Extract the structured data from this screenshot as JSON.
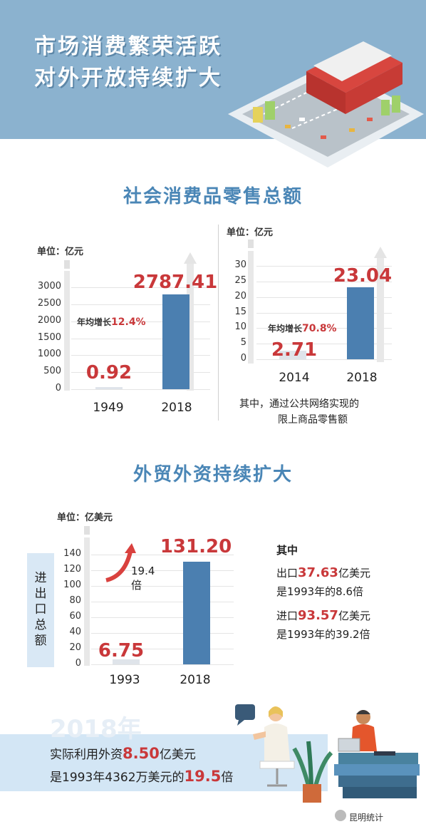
{
  "header": {
    "title_line1": "市场消费繁荣活跃",
    "title_line2": "对外开放持续扩大"
  },
  "section1": {
    "title": "社会消费品零售总额",
    "chart_left": {
      "unit": "单位：亿元",
      "y_ticks": [
        "3000",
        "2500",
        "2000",
        "1500",
        "1000",
        "500",
        "0"
      ],
      "categories": [
        "1949",
        "2018"
      ],
      "value_labels": [
        "0.92",
        "2787.41"
      ],
      "growth_prefix": "年均增长",
      "growth_value": "12.4%"
    },
    "chart_right": {
      "unit": "单位：亿元",
      "y_ticks": [
        "30",
        "25",
        "20",
        "15",
        "10",
        "5",
        "0"
      ],
      "categories": [
        "2014",
        "2018"
      ],
      "value_labels": [
        "2.71",
        "23.04"
      ],
      "growth_prefix": "年均增长",
      "growth_value": "70.8%",
      "note_line1": "其中，通过公共网络实现的",
      "note_line2": "限上商品零售额"
    }
  },
  "section2": {
    "title": "外贸外资持续扩大",
    "chart": {
      "unit": "单位：亿美元",
      "ylabel": "进出口总额",
      "y_ticks": [
        "140",
        "120",
        "100",
        "80",
        "60",
        "40",
        "20",
        "0"
      ],
      "categories": [
        "1993",
        "2018"
      ],
      "value_labels": [
        "6.75",
        "131.20"
      ],
      "multiple": "19.4倍"
    },
    "right_text": {
      "heading": "其中",
      "export_prefix": "出口",
      "export_value": "37.63",
      "export_suffix": "亿美元",
      "export_line2": "是1993年的8.6倍",
      "import_prefix": "进口",
      "import_value": "93.57",
      "import_suffix": "亿美元",
      "import_line2": "是1993年的39.2倍"
    }
  },
  "bottom": {
    "year": "2018年",
    "line1_prefix": "实际利用外资",
    "line1_value": "8.50",
    "line1_suffix": "亿美元",
    "line2_prefix": "是1993年4362万美元的",
    "line2_value": "19.5",
    "line2_suffix": "倍",
    "speech_bubble": "..."
  },
  "watermark": "昆明统计",
  "colors": {
    "header_bg": "#8bb2cf",
    "title_blue": "#4a86b6",
    "bar_blue": "#4b7fb0",
    "highlight_red": "#c9383a",
    "band_blue": "#d3e6f5"
  },
  "chart_data": [
    {
      "type": "bar",
      "categories": [
        "1949",
        "2018"
      ],
      "values": [
        0.92,
        2787.41
      ],
      "ylabel": "单位：亿元",
      "ylim": [
        0,
        3000
      ],
      "grid": true,
      "annotations": [
        "年均增长12.4%"
      ]
    },
    {
      "type": "bar",
      "categories": [
        "2014",
        "2018"
      ],
      "values": [
        2.71,
        23.04
      ],
      "ylabel": "单位：亿元",
      "ylim": [
        0,
        30
      ],
      "grid": true,
      "annotations": [
        "年均增长70.8%"
      ]
    },
    {
      "type": "bar",
      "categories": [
        "1993",
        "2018"
      ],
      "values": [
        6.75,
        131.2
      ],
      "ylabel": "进出口总额",
      "ylim": [
        0,
        140
      ],
      "grid": true,
      "annotations": [
        "19.4倍"
      ]
    }
  ]
}
